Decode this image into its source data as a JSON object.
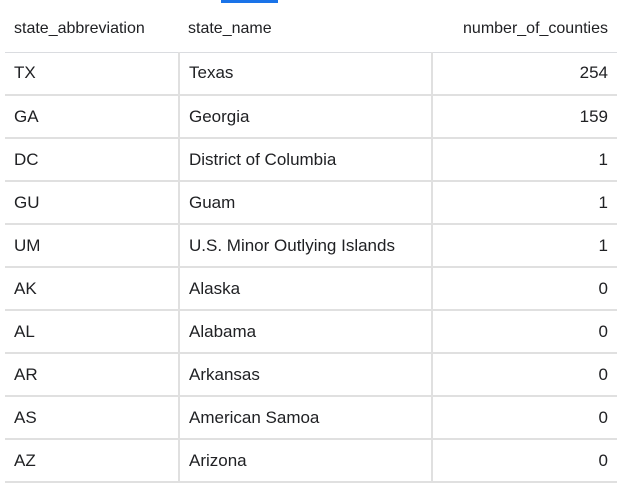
{
  "table": {
    "columns": [
      "state_abbreviation",
      "state_name",
      "number_of_counties"
    ],
    "rows": [
      {
        "state_abbreviation": "TX",
        "state_name": "Texas",
        "number_of_counties": "254"
      },
      {
        "state_abbreviation": "GA",
        "state_name": "Georgia",
        "number_of_counties": "159"
      },
      {
        "state_abbreviation": "DC",
        "state_name": "District of Columbia",
        "number_of_counties": "1"
      },
      {
        "state_abbreviation": "GU",
        "state_name": "Guam",
        "number_of_counties": "1"
      },
      {
        "state_abbreviation": "UM",
        "state_name": "U.S. Minor Outlying Islands",
        "number_of_counties": "1"
      },
      {
        "state_abbreviation": "AK",
        "state_name": "Alaska",
        "number_of_counties": "0"
      },
      {
        "state_abbreviation": "AL",
        "state_name": "Alabama",
        "number_of_counties": "0"
      },
      {
        "state_abbreviation": "AR",
        "state_name": "Arkansas",
        "number_of_counties": "0"
      },
      {
        "state_abbreviation": "AS",
        "state_name": "American Samoa",
        "number_of_counties": "0"
      },
      {
        "state_abbreviation": "AZ",
        "state_name": "Arizona",
        "number_of_counties": "0"
      }
    ]
  },
  "colors": {
    "tab_indicator": "#1a73e8",
    "grid_line": "#e0e0e0",
    "text": "#202124"
  }
}
